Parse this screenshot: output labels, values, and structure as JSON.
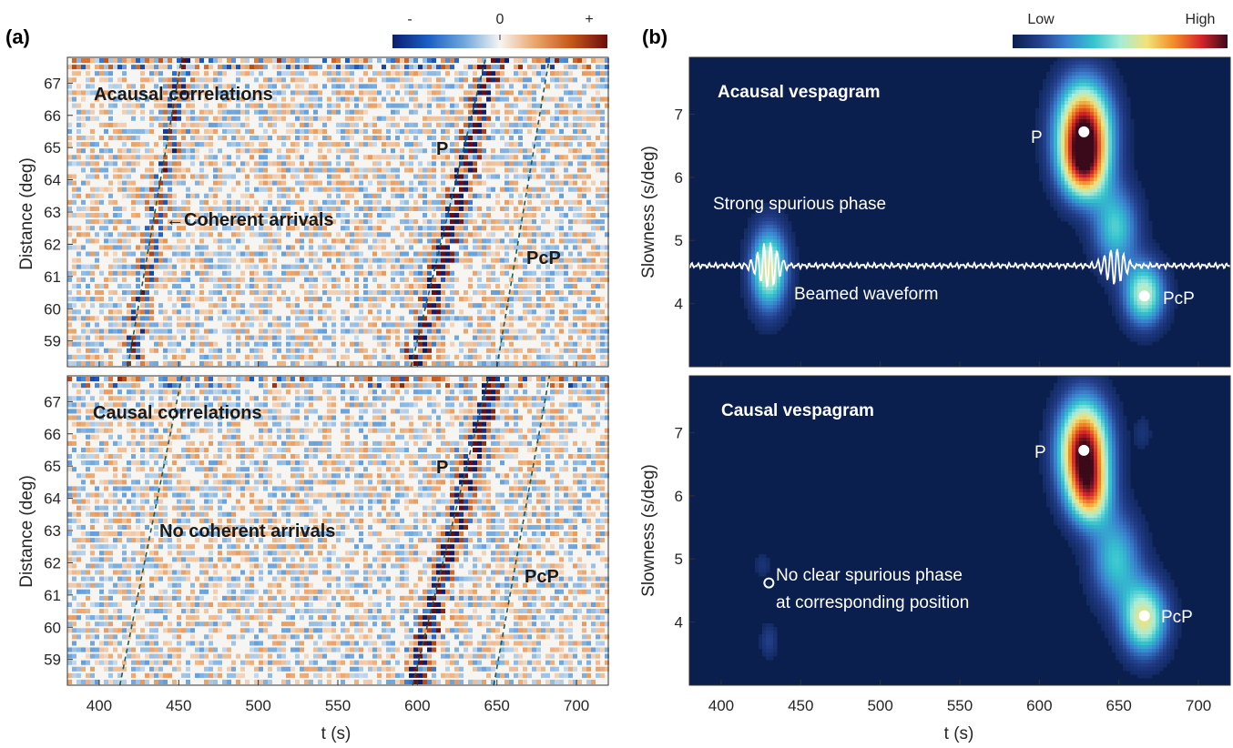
{
  "panel_labels": {
    "a": "(a)",
    "b": "(b)"
  },
  "colorbars": {
    "left": {
      "min_label": "-",
      "mid_label": "0",
      "max_label": "+",
      "colors": [
        "#0a1f6e",
        "#1c5fc4",
        "#6fa7dd",
        "#f7f5f2",
        "#eaa46a",
        "#c4561a",
        "#6b0d0d"
      ]
    },
    "right": {
      "min_label": "Low",
      "max_label": "High",
      "colors": [
        "#0a1f4e",
        "#243f8c",
        "#3a7fcf",
        "#34c3cf",
        "#a7ecd8",
        "#f2e27a",
        "#f28c28",
        "#d6262a",
        "#3a0a1a"
      ]
    }
  },
  "chart_data": [
    {
      "type": "heatmap",
      "panel": "a-top",
      "annotations": {
        "title": "Acausal correlations",
        "p_label": "P",
        "pcp_label": "PcP",
        "arrow_label": "←Coherent arrivals"
      },
      "xlabel": "",
      "ylabel": "Distance (deg)",
      "xlim": [
        380,
        720
      ],
      "ylim": [
        58.2,
        67.8
      ],
      "xticks": [
        400,
        450,
        500,
        550,
        600,
        650,
        700
      ],
      "yticks": [
        59,
        60,
        61,
        62,
        63,
        64,
        65,
        66,
        67
      ],
      "guides": [
        {
          "name": "spurious",
          "t_at_bottom": 418,
          "t_at_top": 452
        },
        {
          "name": "P",
          "t_at_bottom": 596,
          "t_at_top": 643
        },
        {
          "name": "PcP",
          "t_at_bottom": 650,
          "t_at_top": 683
        }
      ],
      "arrivals": [
        {
          "t_at_bottom": 598,
          "t_at_top": 648,
          "strength": 1.0
        },
        {
          "t_at_bottom": 420,
          "t_at_top": 454,
          "strength": 0.55
        }
      ]
    },
    {
      "type": "heatmap",
      "panel": "a-bottom",
      "annotations": {
        "title": "Causal correlations",
        "p_label": "P",
        "pcp_label": "PcP",
        "center_label": "No coherent arrivals"
      },
      "xlabel": "t (s)",
      "ylabel": "Distance (deg)",
      "xlim": [
        380,
        720
      ],
      "ylim": [
        58.2,
        67.8
      ],
      "xticks": [
        400,
        450,
        500,
        550,
        600,
        650,
        700
      ],
      "yticks": [
        59,
        60,
        61,
        62,
        63,
        64,
        65,
        66,
        67
      ],
      "guides": [
        {
          "name": "spurious",
          "t_at_bottom": 413,
          "t_at_top": 452
        },
        {
          "name": "P",
          "t_at_bottom": 597,
          "t_at_top": 645
        },
        {
          "name": "PcP",
          "t_at_bottom": 648,
          "t_at_top": 683
        }
      ],
      "arrivals": [
        {
          "t_at_bottom": 598,
          "t_at_top": 648,
          "strength": 1.0
        }
      ]
    },
    {
      "type": "heatmap",
      "panel": "b-top",
      "annotations": {
        "title": "Acausal vespagram",
        "p_label": "P",
        "pcp_label": "PcP",
        "spurious_label": "Strong spurious phase",
        "waveform_label": "Beamed waveform"
      },
      "xlabel": "",
      "ylabel": "Slowness (s/deg)",
      "xlim": [
        380,
        720
      ],
      "ylim": [
        3.0,
        7.9
      ],
      "xticks": [
        400,
        450,
        500,
        550,
        600,
        650,
        700
      ],
      "yticks": [
        4,
        5,
        6,
        7
      ],
      "peaks": [
        {
          "t": 628,
          "s": 6.72,
          "sigma_t": 12,
          "sigma_s": 0.55,
          "amp": 1.0
        },
        {
          "t": 628,
          "s": 6.1,
          "sigma_t": 10,
          "sigma_s": 0.35,
          "amp": 0.45
        },
        {
          "t": 648,
          "s": 5.2,
          "sigma_t": 10,
          "sigma_s": 0.45,
          "amp": 0.4
        },
        {
          "t": 666,
          "s": 4.15,
          "sigma_t": 9,
          "sigma_s": 0.35,
          "amp": 0.55
        },
        {
          "t": 430,
          "s": 4.55,
          "sigma_t": 8,
          "sigma_s": 0.45,
          "amp": 0.6
        }
      ],
      "markers": [
        {
          "name": "P",
          "t": 628,
          "s": 6.72,
          "filled": true
        },
        {
          "name": "PcP",
          "t": 666,
          "s": 4.12,
          "filled": true
        }
      ],
      "beam_waveform": {
        "baseline_s": 4.6,
        "bursts": [
          {
            "t": 430,
            "amp": 0.38
          },
          {
            "t": 648,
            "amp": 0.3
          }
        ]
      }
    },
    {
      "type": "heatmap",
      "panel": "b-bottom",
      "annotations": {
        "title": "Causal vespagram",
        "p_label": "P",
        "pcp_label": "PcP",
        "note_line1": "No clear spurious phase",
        "note_line2": "at corresponding position"
      },
      "xlabel": "t (s)",
      "ylabel": "Slowness (s/deg)",
      "xlim": [
        380,
        720
      ],
      "ylim": [
        3.0,
        7.9
      ],
      "xticks": [
        400,
        450,
        500,
        550,
        600,
        650,
        700
      ],
      "yticks": [
        4,
        5,
        6,
        7
      ],
      "peaks": [
        {
          "t": 628,
          "s": 6.72,
          "sigma_t": 11,
          "sigma_s": 0.55,
          "amp": 1.0
        },
        {
          "t": 632,
          "s": 6.0,
          "sigma_t": 9,
          "sigma_s": 0.35,
          "amp": 0.45
        },
        {
          "t": 648,
          "s": 5.0,
          "sigma_t": 11,
          "sigma_s": 0.5,
          "amp": 0.38
        },
        {
          "t": 666,
          "s": 4.05,
          "sigma_t": 10,
          "sigma_s": 0.4,
          "amp": 0.6
        },
        {
          "t": 430,
          "s": 3.7,
          "sigma_t": 4,
          "sigma_s": 0.2,
          "amp": 0.12
        },
        {
          "t": 426,
          "s": 4.9,
          "sigma_t": 4,
          "sigma_s": 0.15,
          "amp": 0.08
        },
        {
          "t": 665,
          "s": 7.0,
          "sigma_t": 4,
          "sigma_s": 0.2,
          "amp": 0.08
        }
      ],
      "markers": [
        {
          "name": "P",
          "t": 628,
          "s": 6.72,
          "filled": true
        },
        {
          "name": "PcP",
          "t": 666,
          "s": 4.1,
          "filled": true
        },
        {
          "name": "spurious-position",
          "t": 430,
          "s": 4.62,
          "filled": false
        }
      ]
    }
  ]
}
